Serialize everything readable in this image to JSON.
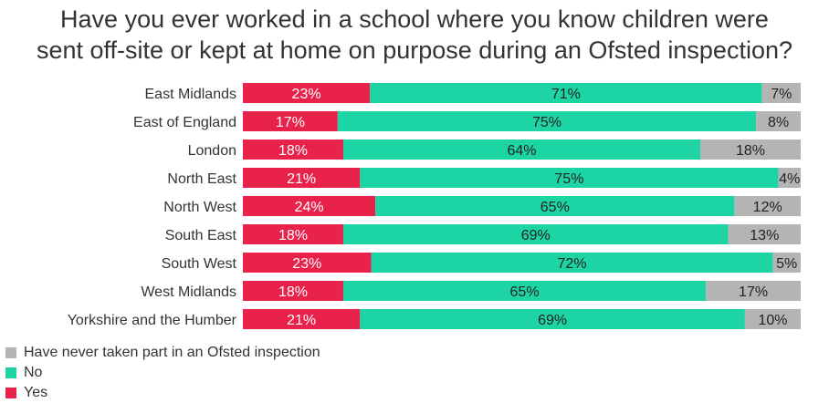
{
  "chart_data": {
    "type": "bar",
    "orientation": "horizontal",
    "stacked": true,
    "title_lines": [
      "Have you ever worked in a school where you know children were",
      "sent off-site or kept at home on purpose during an Ofsted inspection?"
    ],
    "categories": [
      "East Midlands",
      "East of England",
      "London",
      "North East",
      "North West",
      "South East",
      "South West",
      "West Midlands",
      "Yorkshire and the Humber"
    ],
    "series": [
      {
        "name": "Yes",
        "color": "#e8224a",
        "values": [
          23,
          17,
          18,
          21,
          24,
          18,
          23,
          18,
          21
        ]
      },
      {
        "name": "No",
        "color": "#1dd4a5",
        "values": [
          71,
          75,
          64,
          75,
          65,
          69,
          72,
          65,
          69
        ]
      },
      {
        "name": "Have never taken part in an Ofsted inspection",
        "color": "#b4b4b4",
        "values": [
          7,
          8,
          18,
          4,
          12,
          13,
          5,
          17,
          10
        ]
      }
    ],
    "value_suffix": "%",
    "legend": {
      "placement": "bottom-left",
      "order": [
        "Have never taken part in an Ofsted inspection",
        "No",
        "Yes"
      ]
    }
  }
}
